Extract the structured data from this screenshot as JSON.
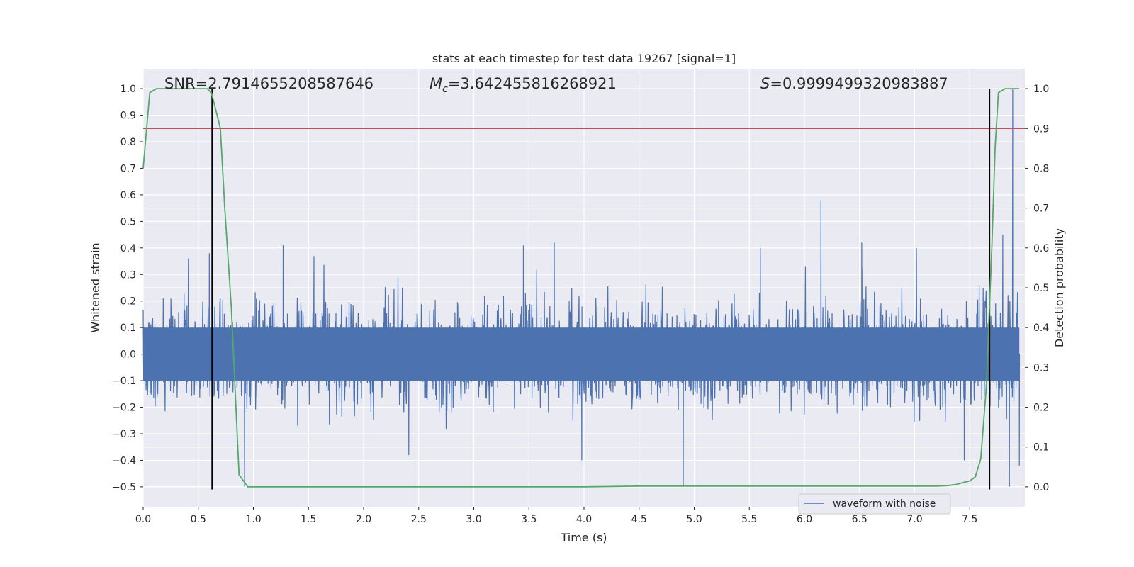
{
  "chart_data": {
    "type": "line",
    "title": "stats at each timestep for test data 19267 [signal=1]",
    "xlabel": "Time (s)",
    "ylabel": "Whitened strain",
    "y2label": "Detection probability",
    "xlim": [
      0.0,
      8.0
    ],
    "ylim": [
      -0.575,
      1.075
    ],
    "y2lim": [
      -0.05,
      1.05
    ],
    "x_ticks": [
      "0.0",
      "0.5",
      "1.0",
      "1.5",
      "2.0",
      "2.5",
      "3.0",
      "3.5",
      "4.0",
      "4.5",
      "5.0",
      "5.5",
      "6.0",
      "6.5",
      "7.0",
      "7.5"
    ],
    "y_ticks": [
      "−0.5",
      "−0.4",
      "−0.3",
      "−0.2",
      "−0.1",
      "0.0",
      "0.1",
      "0.2",
      "0.3",
      "0.4",
      "0.5",
      "0.6",
      "0.7",
      "0.8",
      "0.9",
      "1.0"
    ],
    "y2_ticks": [
      "0.0",
      "0.1",
      "0.2",
      "0.3",
      "0.4",
      "0.5",
      "0.6",
      "0.7",
      "0.8",
      "0.9",
      "1.0"
    ],
    "grid": true,
    "annotations": {
      "snr": "SNR=2.7914655208587646",
      "mc_symbol": "M",
      "mc_sub": "c",
      "mc_value": "=3.642455816268921",
      "s_symbol": "S",
      "s_value": "=0.9999499320983887"
    },
    "threshold": {
      "y2": 0.9,
      "color": "#c44e52"
    },
    "vertical_lines": [
      0.625,
      7.68
    ],
    "series": [
      {
        "name": "waveform with noise",
        "axis": "left",
        "color": "#4c72b0",
        "kind": "noise",
        "amplitude_typical": 0.22,
        "spikes": [
          {
            "x": 0.41,
            "y": 0.36
          },
          {
            "x": 0.6,
            "y": 0.38
          },
          {
            "x": 0.92,
            "y": -0.5
          },
          {
            "x": 1.27,
            "y": 0.41
          },
          {
            "x": 1.55,
            "y": 0.37
          },
          {
            "x": 2.41,
            "y": -0.38
          },
          {
            "x": 3.45,
            "y": 0.41
          },
          {
            "x": 3.73,
            "y": 0.42
          },
          {
            "x": 3.98,
            "y": -0.4
          },
          {
            "x": 4.9,
            "y": -0.5
          },
          {
            "x": 5.6,
            "y": 0.4
          },
          {
            "x": 6.15,
            "y": 0.58
          },
          {
            "x": 6.52,
            "y": 0.42
          },
          {
            "x": 7.45,
            "y": -0.4
          },
          {
            "x": 7.8,
            "y": 0.45
          },
          {
            "x": 7.86,
            "y": -0.5
          },
          {
            "x": 7.89,
            "y": 1.0
          },
          {
            "x": 7.95,
            "y": -0.42
          }
        ]
      },
      {
        "name": "detection probability",
        "axis": "right",
        "color": "#55a868",
        "x": [
          0.0,
          0.06,
          0.12,
          0.2,
          0.3,
          0.4,
          0.5,
          0.58,
          0.62,
          0.7,
          0.74,
          0.8,
          0.87,
          0.95,
          1.1,
          2.0,
          3.0,
          4.0,
          4.5,
          5.0,
          6.0,
          6.5,
          7.0,
          7.2,
          7.3,
          7.38,
          7.43,
          7.5,
          7.55,
          7.6,
          7.65,
          7.7,
          7.73,
          7.76,
          7.82,
          7.9,
          7.95
        ],
        "y": [
          0.8,
          0.99,
          1.0,
          1.0,
          1.0,
          1.0,
          1.0,
          1.0,
          0.99,
          0.9,
          0.7,
          0.45,
          0.03,
          0.0,
          0.0,
          0.0,
          0.0,
          0.0,
          0.002,
          0.002,
          0.002,
          0.002,
          0.002,
          0.002,
          0.003,
          0.006,
          0.01,
          0.015,
          0.025,
          0.07,
          0.25,
          0.6,
          0.85,
          0.99,
          1.0,
          1.0,
          1.0
        ]
      }
    ],
    "legend": {
      "entries": [
        "waveform with noise"
      ],
      "placement": "lower-right"
    }
  }
}
